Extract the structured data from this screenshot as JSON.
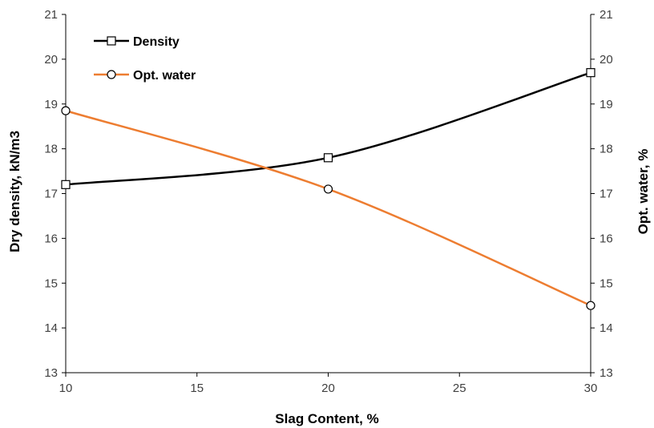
{
  "chart_data": {
    "type": "line",
    "x": [
      10,
      20,
      30
    ],
    "xlabel": "Slag Content, %",
    "ylabel": "Dry  density,  kN/m3",
    "y2label": "Opt. water, %",
    "xlim": [
      10,
      30
    ],
    "ylim": [
      13,
      21
    ],
    "y2lim": [
      13,
      21
    ],
    "xticks": [
      "10",
      "15",
      "20",
      "25",
      "30"
    ],
    "yticks": [
      "13",
      "14",
      "15",
      "16",
      "17",
      "18",
      "19",
      "20",
      "21"
    ],
    "y2ticks": [
      "13",
      "14",
      "15",
      "16",
      "17",
      "18",
      "19",
      "20",
      "21"
    ],
    "grid": false,
    "legend_position": "top-left",
    "series": [
      {
        "name": "Density",
        "axis": "left",
        "values": [
          17.2,
          17.8,
          19.7
        ],
        "color": "#000000",
        "marker": "square"
      },
      {
        "name": "Opt. water",
        "axis": "right",
        "values": [
          18.85,
          17.1,
          14.5
        ],
        "color": "#ED7D31",
        "marker": "circle"
      }
    ]
  }
}
